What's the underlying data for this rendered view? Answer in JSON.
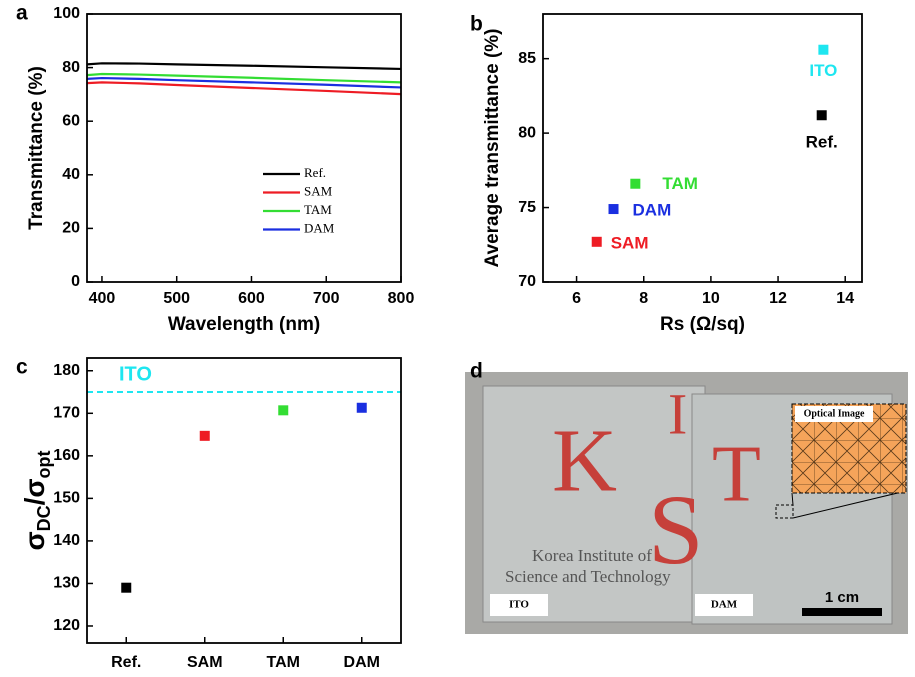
{
  "chart_data": [
    {
      "type": "line",
      "panel_label": "a",
      "xlabel": "Wavelength (nm)",
      "ylabel": "Transmittance (%)",
      "x": [
        380,
        400,
        450,
        500,
        600,
        700,
        800
      ],
      "series": [
        {
          "name": "Ref.",
          "color": "#000000",
          "values": [
            81.2,
            81.6,
            81.5,
            81.2,
            80.7,
            80.1,
            79.5
          ]
        },
        {
          "name": "SAM",
          "color": "#ee1c24",
          "values": [
            74.2,
            74.5,
            74.1,
            73.5,
            72.4,
            71.3,
            70.1
          ]
        },
        {
          "name": "TAM",
          "color": "#33dd33",
          "values": [
            77.2,
            77.6,
            77.4,
            77.0,
            76.2,
            75.3,
            74.5
          ]
        },
        {
          "name": "DAM",
          "color": "#1a2fe0",
          "values": [
            75.8,
            76.1,
            75.8,
            75.3,
            74.5,
            73.6,
            72.6
          ]
        }
      ],
      "xlim": [
        380,
        800
      ],
      "xticks": [
        400,
        500,
        600,
        700,
        800
      ],
      "ylim": [
        0,
        100
      ],
      "yticks": [
        0,
        20,
        40,
        60,
        80,
        100
      ],
      "legend": "lower right"
    },
    {
      "type": "scatter",
      "panel_label": "b",
      "xlabel": "Rs (Ω/sq)",
      "ylabel": "Average transmittance (%)",
      "x": [
        13.35,
        13.3,
        7.75,
        7.1,
        6.6
      ],
      "values": [
        85.6,
        81.2,
        76.6,
        74.9,
        72.7
      ],
      "labels": [
        "ITO",
        "Ref.",
        "TAM",
        "DAM",
        "SAM"
      ],
      "colors": [
        "#1ee6f0",
        "#000000",
        "#33dd33",
        "#1a2fe0",
        "#ee1c24"
      ],
      "xlim": [
        5,
        14.5
      ],
      "xticks": [
        6,
        8,
        10,
        12,
        14
      ],
      "ylim": [
        70,
        88
      ],
      "yticks": [
        70,
        75,
        80,
        85
      ]
    },
    {
      "type": "dot",
      "panel_label": "c",
      "ylabel": {
        "base": "σ",
        "sub1": "DC",
        "mid": "/σ",
        "sub2": "opt"
      },
      "categories": [
        "Ref.",
        "SAM",
        "TAM",
        "DAM"
      ],
      "values": [
        129,
        164.7,
        170.7,
        171.3
      ],
      "colors": [
        "#000000",
        "#ee1c24",
        "#33dd33",
        "#1a2fe0"
      ],
      "reference_line": {
        "value": 175,
        "label": "ITO",
        "color": "#1ee6f0"
      },
      "ylim": [
        116,
        183
      ],
      "yticks": [
        120,
        130,
        140,
        150,
        160,
        170,
        180
      ]
    }
  ],
  "photo": {
    "panel_label": "d",
    "logo_letters": [
      "K",
      "I",
      "S",
      "T"
    ],
    "caption": [
      "Korea Institute of",
      "Science and Technology"
    ],
    "left_label": "ITO",
    "right_label": "DAM",
    "scale_bar": "1 cm",
    "inset_title": "Optical Image"
  }
}
